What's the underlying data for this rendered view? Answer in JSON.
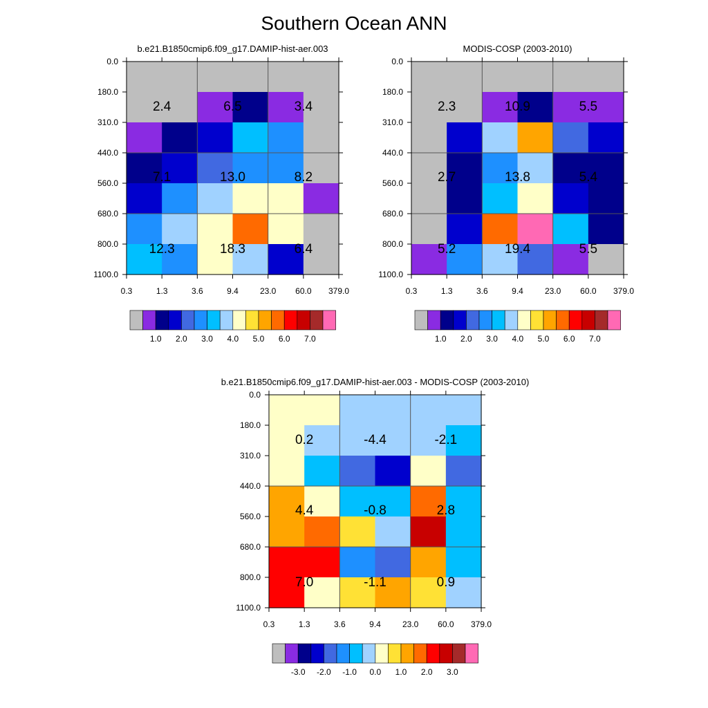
{
  "title": "Southern Ocean ANN",
  "x_ticks": [
    "0.3",
    "1.3",
    "3.6",
    "9.4",
    "23.0",
    "60.0",
    "379.0"
  ],
  "y_ticks": [
    "0.0",
    "180.0",
    "310.0",
    "440.0",
    "560.0",
    "680.0",
    "800.0",
    "1100.0"
  ],
  "colors": {
    "grey": "#bebebe",
    "purple": "#8a2be2",
    "navy": "#00008b",
    "blue": "#0000cd",
    "royal": "#4169e1",
    "dodger": "#1e90ff",
    "deepsky": "#00bfff",
    "lightsky": "#a0d2ff",
    "cream": "#ffffc8",
    "gold": "#ffe135",
    "orange": "#ffa500",
    "darkorange": "#ff6a00",
    "red": "#ff0000",
    "firebrick": "#c80000",
    "brown": "#a52a2a",
    "pink": "#ff69b4"
  },
  "chart_data": [
    {
      "type": "heatmap",
      "title": "b.e21.B1850cmip6.f09_g17.DAMIP-hist-aer.003",
      "cells": [
        [
          "grey",
          "grey",
          "grey",
          "grey",
          "grey",
          "grey"
        ],
        [
          "grey",
          "grey",
          "purple",
          "navy",
          "purple",
          "grey"
        ],
        [
          "purple",
          "navy",
          "blue",
          "deepsky",
          "dodger",
          "grey"
        ],
        [
          "navy",
          "blue",
          "royal",
          "dodger",
          "dodger",
          "grey"
        ],
        [
          "blue",
          "dodger",
          "lightsky",
          "cream",
          "cream",
          "purple"
        ],
        [
          "dodger",
          "lightsky",
          "cream",
          "darkorange",
          "cream",
          "grey"
        ],
        [
          "deepsky",
          "dodger",
          "cream",
          "lightsky",
          "blue",
          "grey"
        ]
      ],
      "block_values": [
        [
          "2.4",
          "6.5",
          "3.4"
        ],
        [
          "7.1",
          "13.0",
          "8.2"
        ],
        [
          "12.3",
          "18.3",
          "6.4"
        ]
      ],
      "colorbar": {
        "colors": [
          "grey",
          "purple",
          "navy",
          "blue",
          "royal",
          "dodger",
          "deepsky",
          "lightsky",
          "cream",
          "gold",
          "orange",
          "darkorange",
          "red",
          "firebrick",
          "brown",
          "pink"
        ],
        "labels": [
          "1.0",
          "2.0",
          "3.0",
          "4.0",
          "5.0",
          "6.0",
          "7.0"
        ]
      }
    },
    {
      "type": "heatmap",
      "title": "MODIS-COSP (2003-2010)",
      "cells": [
        [
          "grey",
          "grey",
          "grey",
          "grey",
          "grey",
          "grey"
        ],
        [
          "grey",
          "grey",
          "purple",
          "navy",
          "purple",
          "purple"
        ],
        [
          "grey",
          "blue",
          "lightsky",
          "orange",
          "royal",
          "blue"
        ],
        [
          "grey",
          "navy",
          "dodger",
          "lightsky",
          "navy",
          "navy"
        ],
        [
          "grey",
          "navy",
          "deepsky",
          "cream",
          "blue",
          "navy"
        ],
        [
          "grey",
          "blue",
          "darkorange",
          "pink",
          "deepsky",
          "navy"
        ],
        [
          "purple",
          "dodger",
          "lightsky",
          "royal",
          "purple",
          "grey"
        ]
      ],
      "block_values": [
        [
          "2.3",
          "10.9",
          "5.5"
        ],
        [
          "2.7",
          "13.8",
          "5.4"
        ],
        [
          "5.2",
          "19.4",
          "5.5"
        ]
      ],
      "colorbar": {
        "colors": [
          "grey",
          "purple",
          "navy",
          "blue",
          "royal",
          "dodger",
          "deepsky",
          "lightsky",
          "cream",
          "gold",
          "orange",
          "darkorange",
          "red",
          "firebrick",
          "brown",
          "pink"
        ],
        "labels": [
          "1.0",
          "2.0",
          "3.0",
          "4.0",
          "5.0",
          "6.0",
          "7.0"
        ]
      }
    },
    {
      "type": "heatmap",
      "title": "b.e21.B1850cmip6.f09_g17.DAMIP-hist-aer.003 - MODIS-COSP (2003-2010)",
      "cells": [
        [
          "cream",
          "cream",
          "lightsky",
          "lightsky",
          "lightsky",
          "lightsky"
        ],
        [
          "cream",
          "lightsky",
          "lightsky",
          "lightsky",
          "lightsky",
          "deepsky"
        ],
        [
          "cream",
          "deepsky",
          "royal",
          "blue",
          "cream",
          "royal"
        ],
        [
          "orange",
          "cream",
          "deepsky",
          "deepsky",
          "darkorange",
          "deepsky"
        ],
        [
          "orange",
          "darkorange",
          "gold",
          "lightsky",
          "firebrick",
          "deepsky"
        ],
        [
          "red",
          "red",
          "dodger",
          "royal",
          "orange",
          "deepsky"
        ],
        [
          "red",
          "cream",
          "gold",
          "orange",
          "gold",
          "lightsky"
        ]
      ],
      "block_values": [
        [
          "0.2",
          "-4.4",
          "-2.1"
        ],
        [
          "4.4",
          "-0.8",
          "2.8"
        ],
        [
          "7.0",
          "-1.1",
          "0.9"
        ]
      ],
      "colorbar": {
        "colors": [
          "grey",
          "purple",
          "navy",
          "blue",
          "royal",
          "dodger",
          "deepsky",
          "lightsky",
          "cream",
          "gold",
          "orange",
          "darkorange",
          "red",
          "firebrick",
          "brown",
          "pink"
        ],
        "labels": [
          "-3.0",
          "-2.0",
          "-1.0",
          "0.0",
          "1.0",
          "2.0",
          "3.0"
        ]
      }
    }
  ]
}
